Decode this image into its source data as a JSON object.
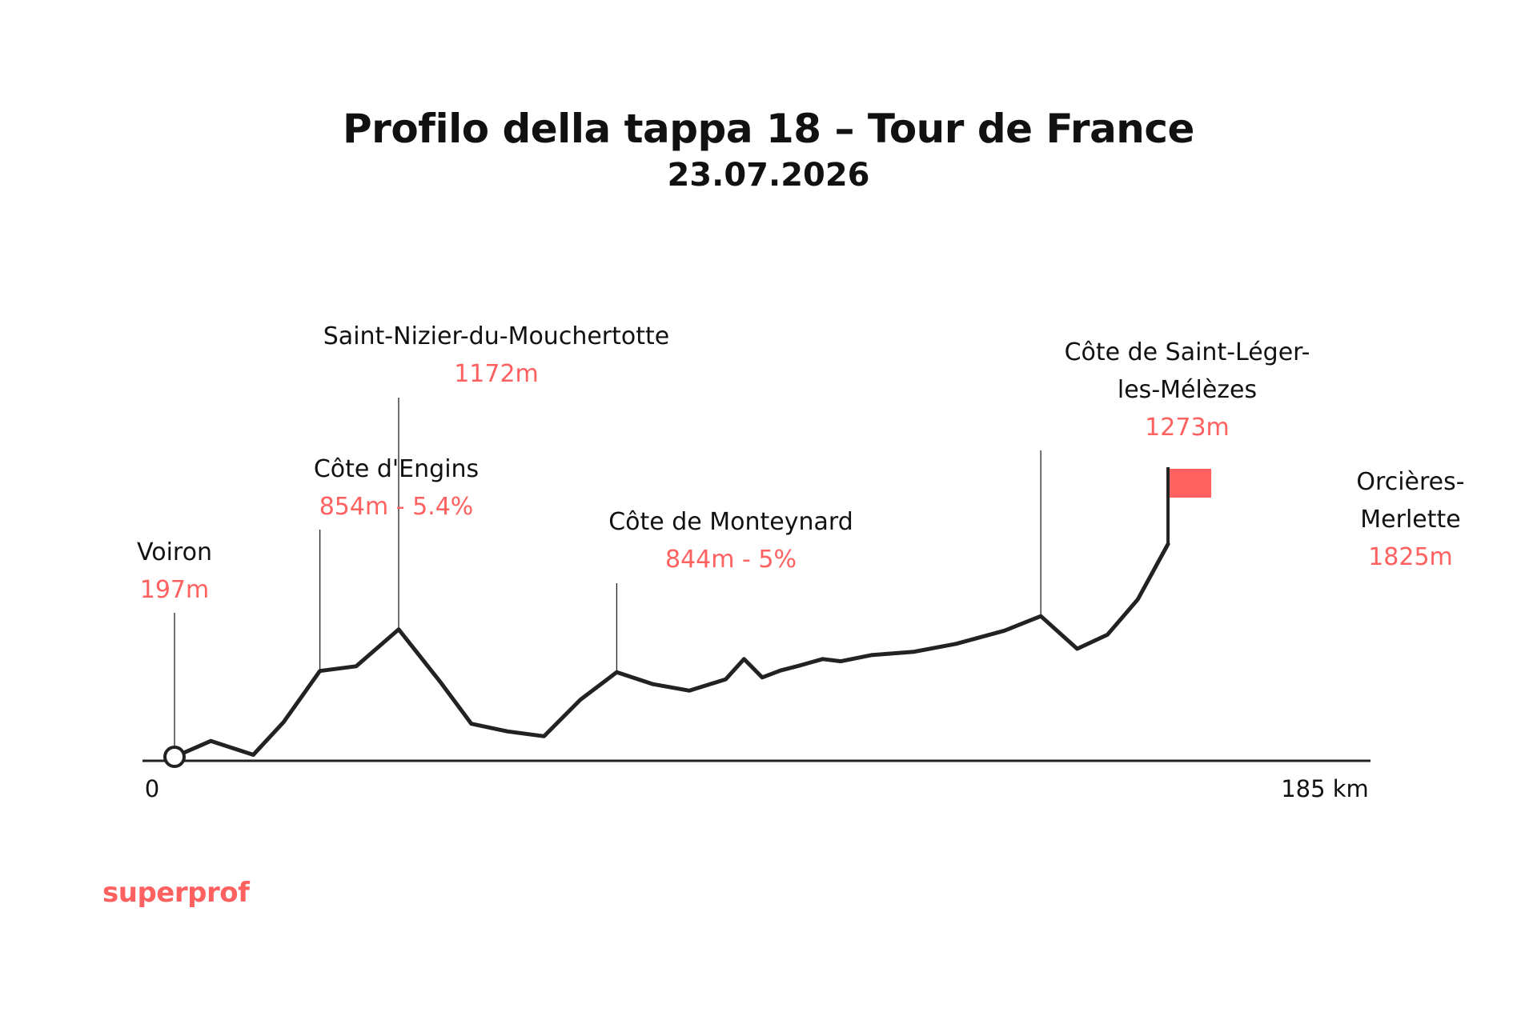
{
  "title": "Profilo della tappa 18 – Tour de France",
  "subtitle": "23.07.2026",
  "brand": "superprof",
  "colors": {
    "accent": "#ff6060",
    "line": "#222222",
    "text": "#111111"
  },
  "chart_data": {
    "type": "line",
    "xlabel": "",
    "ylabel": "",
    "xlim": [
      0,
      185
    ],
    "ylim": [
      197,
      1825
    ],
    "x_ticks": [
      "0",
      "185 km"
    ],
    "series": [
      {
        "x": [
          0,
          6,
          13,
          18,
          24,
          30,
          37,
          44,
          49,
          55,
          61,
          67,
          73,
          79,
          85,
          91,
          94,
          97,
          100,
          103,
          107,
          110,
          115,
          122,
          129,
          137,
          143,
          149,
          154,
          159,
          164
        ],
        "y": [
          197,
          318,
          212,
          462,
          854,
          890,
          1172,
          762,
          450,
          391,
          354,
          634,
          844,
          753,
          703,
          790,
          945,
          804,
          857,
          893,
          945,
          928,
          975,
          1000,
          1061,
          1162,
          1273,
          1023,
          1131,
          1400,
          1825
        ]
      }
    ],
    "annotations": [
      {
        "name": "Voiron",
        "value": "197m",
        "x": 0,
        "y": 197
      },
      {
        "name": "Côte d'Engins",
        "value": "854m - 5.4%",
        "x": 24,
        "y": 854
      },
      {
        "name": "Saint-Nizier-du-Mouchertotte",
        "value": "1172m",
        "x": 37,
        "y": 1172
      },
      {
        "name": "Côte de Monteynard",
        "value": "844m - 5%",
        "x": 73,
        "y": 844
      },
      {
        "name_lines": [
          "Côte de Saint-Léger-",
          "les-Mélèzes"
        ],
        "value": "1273m",
        "x": 143,
        "y": 1273
      },
      {
        "name_lines": [
          "Orcières-",
          "Merlette"
        ],
        "value": "1825m",
        "x": 164,
        "y": 1825
      }
    ]
  }
}
